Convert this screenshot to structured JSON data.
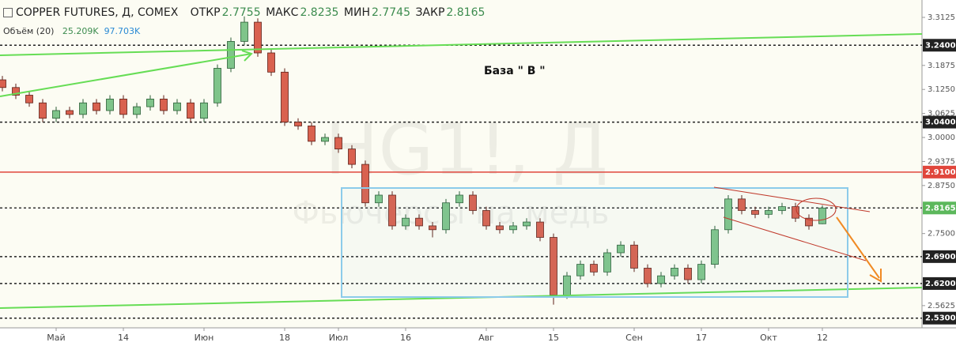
{
  "chart_data": {
    "type": "candlestick",
    "header": {
      "title": "COPPER FUTURES, Д, COMEX",
      "open_label": "ОТКР",
      "open": 2.7755,
      "high_label": "МАКС",
      "high": 2.8235,
      "low_label": "МИН",
      "low": 2.7745,
      "close_label": "ЗАКР",
      "close": 2.8165,
      "volume_label": "Объём (20)",
      "volume_value": "25.209K",
      "volume_ma": "97.703K"
    },
    "watermark": "HG1!, Д",
    "watermark_subtitle": "Фьючерсы на медь",
    "annotation": "База  \" В \"",
    "categories": [
      null,
      null,
      null,
      null,
      "Май",
      null,
      null,
      null,
      null,
      "14",
      null,
      null,
      null,
      null,
      null,
      "Июн",
      null,
      null,
      null,
      null,
      null,
      "18",
      null,
      null,
      null,
      "Июл",
      null,
      null,
      null,
      null,
      "16",
      null,
      null,
      null,
      null,
      null,
      "Авг",
      null,
      null,
      null,
      null,
      "15",
      null,
      null,
      null,
      null,
      null,
      "Сен",
      null,
      null,
      null,
      null,
      "17",
      null,
      null,
      null,
      null,
      "Окт",
      null,
      null,
      null,
      "12"
    ],
    "open": [
      3.15,
      3.13,
      3.11,
      3.09,
      3.05,
      3.07,
      3.06,
      3.09,
      3.07,
      3.1,
      3.06,
      3.08,
      3.1,
      3.07,
      3.09,
      3.05,
      3.09,
      3.18,
      3.25,
      3.3,
      3.22,
      3.17,
      3.04,
      3.03,
      2.99,
      3.0,
      2.97,
      2.93,
      2.83,
      2.85,
      2.77,
      2.79,
      2.77,
      2.76,
      2.83,
      2.85,
      2.81,
      2.77,
      2.76,
      2.77,
      2.78,
      2.74,
      2.59,
      2.64,
      2.67,
      2.65,
      2.7,
      2.72,
      2.66,
      2.62,
      2.64,
      2.66,
      2.63,
      2.67,
      2.76,
      2.84,
      2.81,
      2.8,
      2.81,
      2.82,
      2.79,
      2.7755
    ],
    "high": [
      3.16,
      3.14,
      3.12,
      3.1,
      3.08,
      3.08,
      3.1,
      3.1,
      3.11,
      3.11,
      3.09,
      3.11,
      3.11,
      3.1,
      3.1,
      3.1,
      3.19,
      3.26,
      3.315,
      3.31,
      3.23,
      3.18,
      3.05,
      3.04,
      3.01,
      3.01,
      2.98,
      2.94,
      2.86,
      2.86,
      2.8,
      2.8,
      2.78,
      2.84,
      2.86,
      2.86,
      2.82,
      2.78,
      2.78,
      2.79,
      2.79,
      2.75,
      2.65,
      2.68,
      2.68,
      2.71,
      2.73,
      2.73,
      2.67,
      2.65,
      2.67,
      2.67,
      2.68,
      2.77,
      2.85,
      2.85,
      2.82,
      2.82,
      2.83,
      2.83,
      2.8,
      2.8235
    ],
    "low": [
      3.12,
      3.1,
      3.08,
      3.04,
      3.04,
      3.05,
      3.05,
      3.06,
      3.06,
      3.05,
      3.05,
      3.07,
      3.06,
      3.06,
      3.04,
      3.04,
      3.08,
      3.17,
      3.24,
      3.21,
      3.16,
      3.03,
      3.02,
      2.98,
      2.98,
      2.96,
      2.92,
      2.82,
      2.82,
      2.76,
      2.76,
      2.76,
      2.74,
      2.75,
      2.82,
      2.8,
      2.76,
      2.75,
      2.75,
      2.76,
      2.73,
      2.565,
      2.58,
      2.63,
      2.64,
      2.64,
      2.69,
      2.65,
      2.61,
      2.61,
      2.63,
      2.62,
      2.62,
      2.66,
      2.75,
      2.8,
      2.79,
      2.79,
      2.8,
      2.78,
      2.76,
      2.7745
    ],
    "close": [
      3.13,
      3.11,
      3.09,
      3.05,
      3.07,
      3.06,
      3.09,
      3.07,
      3.1,
      3.06,
      3.08,
      3.1,
      3.07,
      3.09,
      3.05,
      3.09,
      3.18,
      3.25,
      3.3,
      3.22,
      3.17,
      3.04,
      3.03,
      2.99,
      3.0,
      2.97,
      2.93,
      2.83,
      2.85,
      2.77,
      2.79,
      2.77,
      2.76,
      2.83,
      2.85,
      2.81,
      2.77,
      2.76,
      2.77,
      2.78,
      2.74,
      2.59,
      2.64,
      2.67,
      2.65,
      2.7,
      2.72,
      2.66,
      2.62,
      2.64,
      2.66,
      2.63,
      2.67,
      2.76,
      2.84,
      2.81,
      2.8,
      2.81,
      2.82,
      2.79,
      2.77,
      2.8165
    ],
    "up_color": "#7fc48a",
    "down_color": "#d9614f",
    "ylim": [
      2.5047,
      3.3577
    ],
    "yticks": [
      3.3125,
      2.5625,
      {
        "value": 3.1875,
        "label": "3.1875"
      },
      {
        "value": 3.125,
        "label": "3.1250"
      },
      {
        "value": 3.0625,
        "label": "3.0625"
      },
      {
        "value": 3,
        "label": "3.0000"
      },
      {
        "value": 2.9375,
        "label": "2.9375"
      },
      {
        "value": 2.875,
        "label": "2.8750"
      },
      {
        "value": 2.75,
        "label": "2.7500"
      }
    ],
    "levels": [
      {
        "value": 3.24,
        "label": "3.2400",
        "color": "#222222",
        "style": "dashed"
      },
      {
        "value": 3.04,
        "label": "3.0400",
        "color": "#222222",
        "style": "dashed"
      },
      {
        "value": 2.91,
        "label": "2.9100",
        "color": "#e0463c",
        "style": "solid"
      },
      {
        "value": 2.8165,
        "label": "2.8165",
        "color": "#333333",
        "style": "dashed",
        "label_color": "#5cb85c"
      },
      {
        "value": 2.69,
        "label": "2.6900",
        "color": "#222222",
        "style": "dashed"
      },
      {
        "value": 2.62,
        "label": "2.6200",
        "color": "#222222",
        "style": "dashed"
      },
      {
        "value": 2.53,
        "label": "2.5300",
        "color": "#222222",
        "style": "dashed"
      }
    ]
  }
}
